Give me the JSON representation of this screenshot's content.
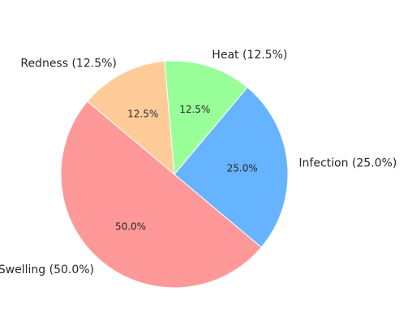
{
  "chart_data": {
    "type": "pie",
    "title": "",
    "start_angle_deg": 140,
    "direction": "counterclockwise",
    "slices": [
      {
        "label": "Swelling",
        "value": 50.0,
        "outer_label": "Swelling (50.0%)",
        "pct_label": "50.0%",
        "color": "#ff9999"
      },
      {
        "label": "Infection",
        "value": 25.0,
        "outer_label": "Infection (25.0%)",
        "pct_label": "25.0%",
        "color": "#66b3ff"
      },
      {
        "label": "Heat",
        "value": 12.5,
        "outer_label": "Heat (12.5%)",
        "pct_label": "12.5%",
        "color": "#99ff99"
      },
      {
        "label": "Redness",
        "value": 12.5,
        "outer_label": "Redness (12.5%)",
        "pct_label": "12.5%",
        "color": "#ffcc99"
      }
    ]
  }
}
